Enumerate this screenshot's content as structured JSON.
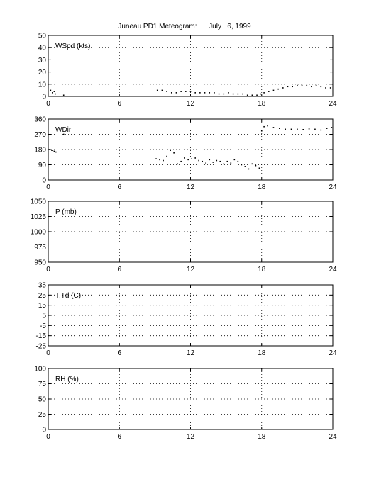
{
  "figure": {
    "title": "Juneau PD1 Meteogram:      July   6, 1999"
  },
  "chart_data": [
    {
      "type": "scatter",
      "panel_label": "WSpd (kts)",
      "xlim": [
        0,
        24
      ],
      "ylim": [
        0,
        50
      ],
      "x_ticks": [
        0,
        6,
        12,
        18,
        24
      ],
      "y_ticks": [
        0,
        10,
        20,
        30,
        40,
        50
      ],
      "grid": true,
      "series": [
        {
          "x": [
            0.2,
            0.35,
            0.5,
            0.6,
            1.3,
            9.2,
            9.6,
            10.0,
            10.4,
            10.8,
            11.2,
            11.6,
            12.0,
            12.4,
            12.8,
            13.2,
            13.6,
            14.0,
            14.4,
            14.8,
            15.2,
            15.6,
            16.0,
            16.4,
            16.8,
            17.2,
            17.6,
            17.9,
            18.2,
            18.6,
            19.0,
            19.4,
            19.8,
            20.2,
            20.6,
            21.0,
            21.4,
            21.8,
            22.2,
            22.6,
            23.0,
            23.4,
            23.8
          ],
          "y": [
            5,
            3,
            4,
            2,
            1,
            5,
            5,
            4,
            3,
            3,
            4,
            4,
            4,
            3,
            3,
            3,
            3,
            3,
            2,
            2,
            3,
            2,
            2,
            2,
            1,
            1,
            1,
            2,
            3,
            4,
            5,
            6,
            7,
            8,
            8,
            9,
            9,
            9,
            8,
            9,
            8,
            7,
            7
          ]
        }
      ]
    },
    {
      "type": "scatter",
      "panel_label": "WDir",
      "xlim": [
        0,
        24
      ],
      "ylim": [
        0,
        360
      ],
      "x_ticks": [
        0,
        6,
        12,
        18,
        24
      ],
      "y_ticks": [
        0,
        90,
        180,
        270,
        360
      ],
      "grid": true,
      "series": [
        {
          "x": [
            0.1,
            0.3,
            0.5,
            0.65,
            1.3,
            9.1,
            9.4,
            9.7,
            10.0,
            10.3,
            10.6,
            10.9,
            11.2,
            11.5,
            11.8,
            12.1,
            12.4,
            12.7,
            13.0,
            13.3,
            13.6,
            13.9,
            14.2,
            14.5,
            14.8,
            15.1,
            15.4,
            15.7,
            16.0,
            16.3,
            16.6,
            16.9,
            17.2,
            17.5,
            17.8,
            18.0,
            18.2,
            18.5,
            19.0,
            19.5,
            20.0,
            20.5,
            21.0,
            21.5,
            22.0,
            22.5,
            23.0,
            23.5,
            23.9
          ],
          "y": [
            180,
            175,
            170,
            165,
            270,
            125,
            120,
            115,
            140,
            175,
            160,
            95,
            110,
            130,
            120,
            125,
            130,
            115,
            110,
            100,
            120,
            105,
            115,
            110,
            95,
            110,
            100,
            120,
            110,
            90,
            80,
            65,
            95,
            85,
            70,
            290,
            315,
            320,
            310,
            305,
            300,
            300,
            300,
            298,
            302,
            300,
            295,
            305,
            310
          ]
        }
      ]
    },
    {
      "type": "scatter",
      "panel_label": "P (mb)",
      "xlim": [
        0,
        24
      ],
      "ylim": [
        950,
        1050
      ],
      "x_ticks": [
        0,
        6,
        12,
        18,
        24
      ],
      "y_ticks": [
        950,
        975,
        1000,
        1025,
        1050
      ],
      "grid": true,
      "series": []
    },
    {
      "type": "scatter",
      "panel_label": "T,Td (C)",
      "xlim": [
        0,
        24
      ],
      "ylim": [
        -25,
        35
      ],
      "x_ticks": [
        0,
        6,
        12,
        18,
        24
      ],
      "y_ticks": [
        -25,
        -15,
        -5,
        5,
        15,
        25,
        35
      ],
      "grid": true,
      "series": []
    },
    {
      "type": "scatter",
      "panel_label": "RH (%)",
      "xlim": [
        0,
        24
      ],
      "ylim": [
        0,
        100
      ],
      "x_ticks": [
        0,
        6,
        12,
        18,
        24
      ],
      "y_ticks": [
        0,
        25,
        50,
        75,
        100
      ],
      "grid": true,
      "series": []
    }
  ]
}
